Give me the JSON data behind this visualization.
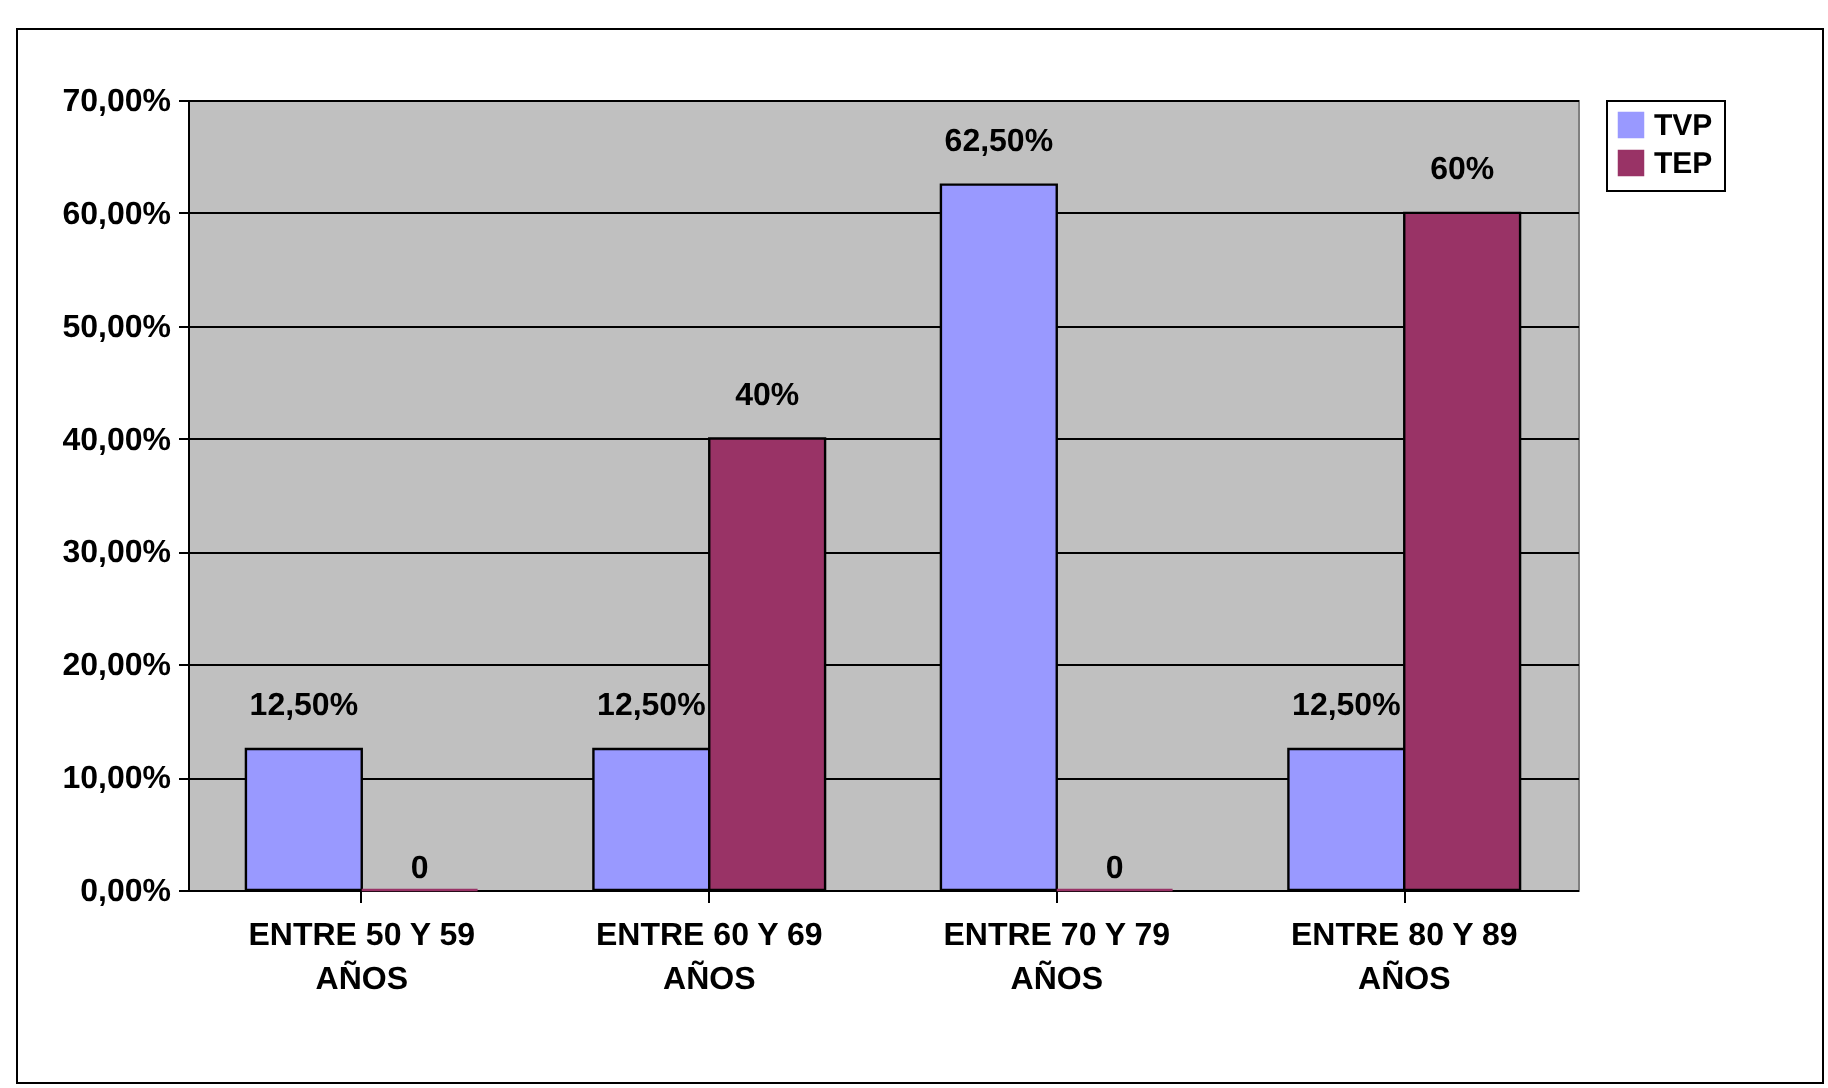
{
  "chart_data": {
    "type": "bar",
    "categories": [
      "ENTRE 50 Y 59 AÑOS",
      "ENTRE 60 Y 69 AÑOS",
      "ENTRE 70 Y 79 AÑOS",
      "ENTRE 80 Y 89 AÑOS"
    ],
    "series": [
      {
        "name": "TVP",
        "color": "#9999ff",
        "values": [
          12.5,
          12.5,
          62.5,
          12.5
        ],
        "value_labels": [
          "12,50%",
          "12,50%",
          "62,50%",
          "12,50%"
        ]
      },
      {
        "name": "TEP",
        "color": "#993366",
        "values": [
          0,
          40,
          0,
          60
        ],
        "value_labels": [
          "0",
          "40%",
          "0",
          "60%"
        ]
      }
    ],
    "ylim": [
      0,
      70
    ],
    "yticks": [
      {
        "value": 0,
        "label": "0,00%"
      },
      {
        "value": 10,
        "label": "10,00%"
      },
      {
        "value": 20,
        "label": "20,00%"
      },
      {
        "value": 30,
        "label": "30,00%"
      },
      {
        "value": 40,
        "label": "40,00%"
      },
      {
        "value": 50,
        "label": "50,00%"
      },
      {
        "value": 60,
        "label": "60,00%"
      },
      {
        "value": 70,
        "label": "70,00%"
      }
    ],
    "grid": "y",
    "legend": "right"
  }
}
